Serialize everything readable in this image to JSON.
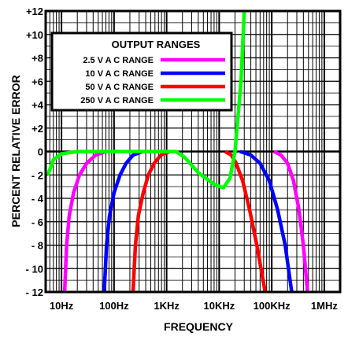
{
  "chart_data": {
    "type": "line",
    "title": "",
    "xlabel": "FREQUENCY",
    "ylabel": "PERCENT RELATIVE ERROR",
    "x_scale": "log",
    "xlim": [
      5,
      2000000
    ],
    "ylim": [
      -12,
      12
    ],
    "grid": true,
    "x_ticks": [
      {
        "value": 10,
        "label": "10Hz"
      },
      {
        "value": 100,
        "label": "100Hz"
      },
      {
        "value": 1000,
        "label": "1KHz"
      },
      {
        "value": 10000,
        "label": "10KHz"
      },
      {
        "value": 100000,
        "label": "100KHz"
      },
      {
        "value": 1000000,
        "label": "1MHz"
      }
    ],
    "y_ticks": [
      {
        "value": 12,
        "label": "+12"
      },
      {
        "value": 10,
        "label": "+10"
      },
      {
        "value": 8,
        "label": "+8"
      },
      {
        "value": 6,
        "label": "+6"
      },
      {
        "value": 4,
        "label": "+4"
      },
      {
        "value": 2,
        "label": "+2"
      },
      {
        "value": 0,
        "label": "0"
      },
      {
        "value": -2,
        "label": "- 2"
      },
      {
        "value": -4,
        "label": "- 4"
      },
      {
        "value": -6,
        "label": "- 6"
      },
      {
        "value": -8,
        "label": "- 8"
      },
      {
        "value": -10,
        "label": "- 10"
      },
      {
        "value": -12,
        "label": "- 12"
      }
    ],
    "legend": {
      "title": "OUTPUT RANGES",
      "position": "top-left"
    },
    "series": [
      {
        "name": "2.5  V A C  RANGE",
        "color": "#ff00ff",
        "segments": [
          [
            [
              11.5,
              -12
            ],
            [
              12.5,
              -8
            ],
            [
              14,
              -5.5
            ],
            [
              17,
              -3.5
            ],
            [
              22,
              -2
            ],
            [
              30,
              -1
            ],
            [
              45,
              -0.3
            ],
            [
              70,
              0
            ]
          ],
          [
            [
              110000,
              0
            ],
            [
              150000,
              -0.3
            ],
            [
              200000,
              -1
            ],
            [
              260000,
              -2.5
            ],
            [
              330000,
              -5
            ],
            [
              400000,
              -8
            ],
            [
              480000,
              -12
            ]
          ]
        ]
      },
      {
        "name": "10  V A C  RANGE",
        "color": "#0000ff",
        "segments": [
          [
            [
              65,
              -12
            ],
            [
              72,
              -8
            ],
            [
              82,
              -5.5
            ],
            [
              100,
              -3.5
            ],
            [
              130,
              -2
            ],
            [
              170,
              -1
            ],
            [
              230,
              -0.3
            ],
            [
              350,
              0
            ]
          ],
          [
            [
              25000,
              0
            ],
            [
              40000,
              -0.3
            ],
            [
              60000,
              -1
            ],
            [
              90000,
              -2.5
            ],
            [
              130000,
              -5
            ],
            [
              180000,
              -8
            ],
            [
              240000,
              -12
            ]
          ]
        ]
      },
      {
        "name": "50  V A C  RANGE",
        "color": "#ff0000",
        "segments": [
          [
            [
              230,
              -12
            ],
            [
              255,
              -8
            ],
            [
              290,
              -5.5
            ],
            [
              360,
              -3.5
            ],
            [
              450,
              -2
            ],
            [
              580,
              -1
            ],
            [
              780,
              -0.3
            ],
            [
              1150,
              0
            ]
          ],
          [
            [
              13000,
              0
            ],
            [
              17000,
              -0.3
            ],
            [
              21000,
              -1
            ],
            [
              28000,
              -2.5
            ],
            [
              38000,
              -5
            ],
            [
              52000,
              -8
            ],
            [
              75000,
              -12
            ]
          ]
        ]
      },
      {
        "name": "250  V A C  RANGE",
        "color": "#00ff00",
        "segments": [
          [
            [
              5.5,
              -2
            ],
            [
              7,
              -0.7
            ],
            [
              10,
              -0.2
            ],
            [
              20,
              0
            ],
            [
              1500,
              0
            ],
            [
              2200,
              -0.5
            ],
            [
              4000,
              -1.8
            ],
            [
              8000,
              -2.8
            ],
            [
              12000,
              -3.1
            ],
            [
              16000,
              -2.3
            ],
            [
              20000,
              0
            ],
            [
              26000,
              6
            ],
            [
              30000,
              12
            ]
          ]
        ]
      }
    ]
  }
}
